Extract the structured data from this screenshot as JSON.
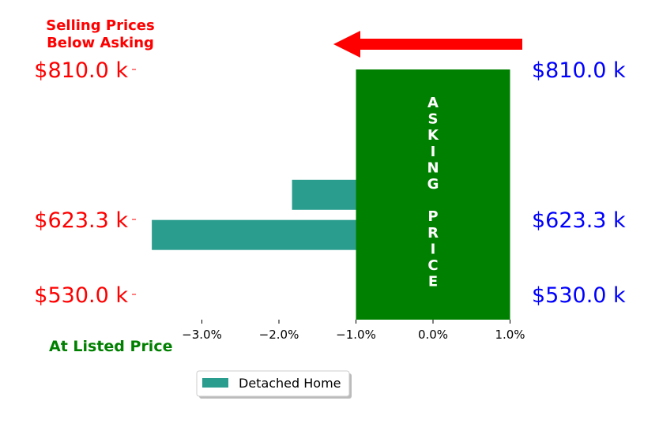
{
  "chart_data": {
    "type": "bar",
    "orientation": "horizontal",
    "series": [
      {
        "name": "Detached Home",
        "color": "#2a9d8f",
        "points": [
          {
            "price": 654.0,
            "value": -1.83
          },
          {
            "price": 604.0,
            "value": -3.65
          }
        ]
      }
    ],
    "ylim": [
      510,
      830
    ],
    "xlim": [
      -4.0,
      1.0
    ],
    "x_ticks": [
      -3.0,
      -2.0,
      -1.0,
      0.0,
      1.0
    ],
    "x_tick_labels": [
      "−3.0%",
      "−2.0%",
      "−1.0%",
      "0.0%",
      "1.0%"
    ],
    "y_ticks": [
      810.0,
      623.3,
      530.0
    ],
    "y_tick_labels_left": [
      "$810.0 k",
      "$623.3 k",
      "$530.0 k"
    ],
    "y_tick_labels_right": [
      "$810.0 k",
      "$623.3 k",
      "$530.0 k"
    ],
    "asking_band": {
      "x_range": [
        -1.0,
        1.0
      ],
      "color": "#008000",
      "label_letters": [
        "A",
        "S",
        "K",
        "I",
        "N",
        "G",
        "",
        "P",
        "R",
        "I",
        "C",
        "E"
      ]
    },
    "annotations": {
      "top_line1": "Selling Prices",
      "top_line2": "Below Asking",
      "bottom": "At Listed Price"
    },
    "colors": {
      "left_labels": "#ff0000",
      "right_labels": "#0000ff",
      "top_annotation": "#ff0000",
      "bottom_annotation": "#008000",
      "arrow": "#ff0000"
    },
    "legend": {
      "placement": "bottom-center",
      "entries": [
        "Detached Home"
      ]
    },
    "grid": false
  }
}
